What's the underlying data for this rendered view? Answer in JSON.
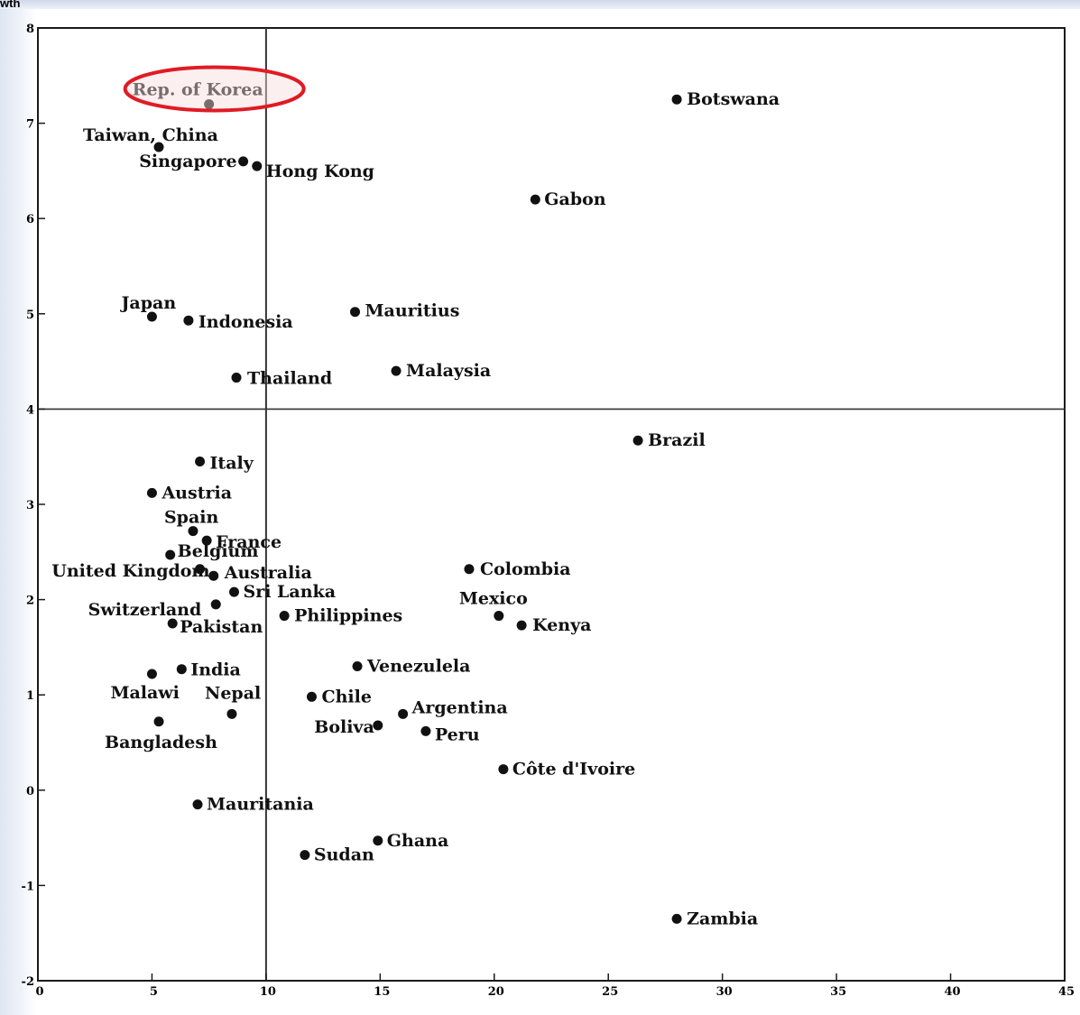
{
  "corner_text": "wth",
  "chart_data": {
    "type": "scatter",
    "title": "",
    "xlabel": "",
    "ylabel": "",
    "xlim": [
      0,
      45
    ],
    "ylim": [
      -2,
      8
    ],
    "x_ticks": [
      "0",
      "5",
      "10",
      "15",
      "20",
      "25",
      "30",
      "35",
      "40",
      "45"
    ],
    "y_ticks": [
      "-2",
      "-1",
      "0",
      "1",
      "2",
      "3",
      "4",
      "5",
      "6",
      "7",
      "8"
    ],
    "reference_lines": {
      "vertical_x": 10,
      "horizontal_y": 4
    },
    "grid": false,
    "highlight": {
      "label": "Rep. of Korea",
      "outline_color": "#e01b24",
      "fill_color": "#f7dcdc"
    },
    "points": [
      {
        "label": "Rep. of Korea",
        "x": 7.5,
        "y": 7.2
      },
      {
        "label": "Botswana",
        "x": 28.0,
        "y": 7.25
      },
      {
        "label": "Taiwan, China",
        "x": 5.3,
        "y": 6.75
      },
      {
        "label": "Singapore",
        "x": 9.0,
        "y": 6.6
      },
      {
        "label": "Hong Kong",
        "x": 9.6,
        "y": 6.55
      },
      {
        "label": "Gabon",
        "x": 21.8,
        "y": 6.2
      },
      {
        "label": "Japan",
        "x": 5.0,
        "y": 4.97
      },
      {
        "label": "Indonesia",
        "x": 6.6,
        "y": 4.93
      },
      {
        "label": "Mauritius",
        "x": 13.9,
        "y": 5.02
      },
      {
        "label": "Thailand",
        "x": 8.7,
        "y": 4.33
      },
      {
        "label": "Malaysia",
        "x": 15.7,
        "y": 4.4
      },
      {
        "label": "Brazil",
        "x": 26.3,
        "y": 3.67
      },
      {
        "label": "Italy",
        "x": 7.1,
        "y": 3.45
      },
      {
        "label": "Austria",
        "x": 5.0,
        "y": 3.12
      },
      {
        "label": "Spain",
        "x": 6.8,
        "y": 2.72
      },
      {
        "label": "France",
        "x": 7.4,
        "y": 2.62
      },
      {
        "label": "Belgium",
        "x": 5.8,
        "y": 2.47
      },
      {
        "label": "Australia",
        "x": 7.7,
        "y": 2.25
      },
      {
        "label": "United Kingdom",
        "x": 7.1,
        "y": 2.32
      },
      {
        "label": "Sri Lanka",
        "x": 8.6,
        "y": 2.08
      },
      {
        "label": "Switzerland",
        "x": 7.8,
        "y": 1.95
      },
      {
        "label": "Pakistan",
        "x": 5.9,
        "y": 1.75
      },
      {
        "label": "Philippines",
        "x": 10.8,
        "y": 1.83
      },
      {
        "label": "Colombia",
        "x": 18.9,
        "y": 2.32
      },
      {
        "label": "Mexico",
        "x": 20.2,
        "y": 1.83
      },
      {
        "label": "Kenya",
        "x": 21.2,
        "y": 1.73
      },
      {
        "label": "India",
        "x": 6.3,
        "y": 1.27
      },
      {
        "label": "Malawi",
        "x": 5.0,
        "y": 1.22
      },
      {
        "label": "Venezulela",
        "x": 14.0,
        "y": 1.3
      },
      {
        "label": "Chile",
        "x": 12.0,
        "y": 0.98
      },
      {
        "label": "Nepal",
        "x": 8.5,
        "y": 0.8
      },
      {
        "label": "Argentina",
        "x": 16.0,
        "y": 0.8
      },
      {
        "label": "Bangladesh",
        "x": 5.3,
        "y": 0.72
      },
      {
        "label": "Boliva",
        "x": 14.9,
        "y": 0.68
      },
      {
        "label": "Peru",
        "x": 17.0,
        "y": 0.62
      },
      {
        "label": "Côte d'Ivoire",
        "x": 20.4,
        "y": 0.22
      },
      {
        "label": "Mauritania",
        "x": 7.0,
        "y": -0.15
      },
      {
        "label": "Ghana",
        "x": 14.9,
        "y": -0.53
      },
      {
        "label": "Sudan",
        "x": 11.7,
        "y": -0.68
      },
      {
        "label": "Zambia",
        "x": 28.0,
        "y": -1.35
      }
    ]
  }
}
